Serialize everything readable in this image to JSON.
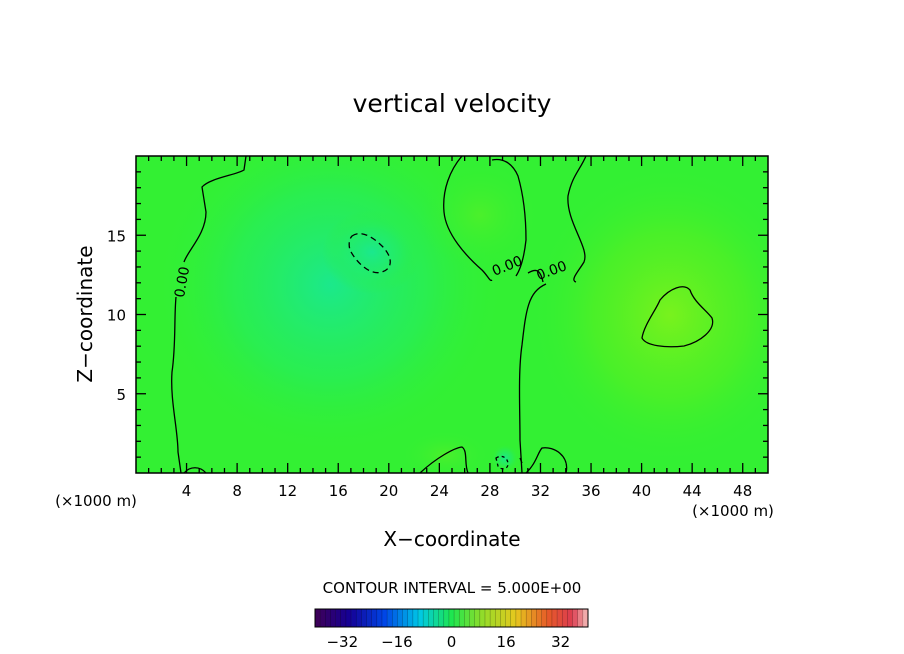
{
  "chart_data": {
    "type": "heatmap",
    "title": "vertical velocity",
    "xlabel": "X−coordinate",
    "ylabel": "Z−coordinate",
    "x_units": "(×1000 m)",
    "y_units": "(×1000 m)",
    "xlim": [
      0,
      50
    ],
    "ylim": [
      0,
      20
    ],
    "x_ticks": [
      4,
      8,
      12,
      16,
      20,
      24,
      28,
      32,
      36,
      40,
      44,
      48
    ],
    "y_ticks": [
      5,
      10,
      15
    ],
    "contour_interval_text": "CONTOUR INTERVAL = 5.000E+00",
    "contour_labels": [
      {
        "text": "0.00",
        "x": 4,
        "y": 12
      },
      {
        "text": "0.00",
        "x": 29.5,
        "y": 12.8
      },
      {
        "text": "0.00",
        "x": 33,
        "y": 12.5
      }
    ],
    "colorbar": {
      "min": -40,
      "max": 40,
      "ticks": [
        -32,
        -16,
        0,
        16,
        32
      ],
      "tick_labels": [
        "−32",
        "−16",
        "0",
        "16",
        "32"
      ]
    },
    "colors": {
      "background_field": "#33f033",
      "negative_region": "#1fee6e",
      "positive_region": "#66f21f"
    }
  }
}
